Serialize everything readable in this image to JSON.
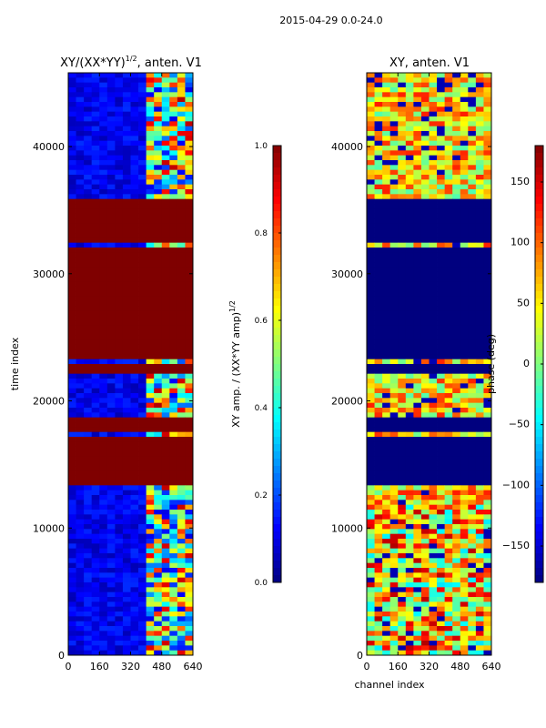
{
  "suptitle": "2015-04-29 0.0-24.0",
  "xlabel": "channel index",
  "colors": {
    "jet": [
      "#00007f",
      "#0000ff",
      "#007fff",
      "#00ffff",
      "#7fff7f",
      "#ffff00",
      "#ff7f00",
      "#ff0000",
      "#7f0000"
    ]
  },
  "chart_data": [
    {
      "type": "heatmap",
      "title_prefix": "XY/(XX*YY)",
      "title_exp": "1/2",
      "title_suffix": ", anten. V1",
      "ylabel": "time index",
      "xlabel": "",
      "x_ticks": [
        "0",
        "160",
        "320",
        "480",
        "640"
      ],
      "x_tick_values": [
        0,
        160,
        320,
        480,
        640
      ],
      "xlim": [
        0,
        640
      ],
      "y_ticks": [
        "0",
        "10000",
        "20000",
        "30000",
        "40000"
      ],
      "y_tick_values": [
        0,
        10000,
        20000,
        30000,
        40000
      ],
      "ylim": [
        0,
        45800
      ],
      "colorbar": {
        "label_prefix": "XY amp. / (XX*YY amp)",
        "label_exp": "1/2",
        "range": [
          0.0,
          1.0
        ],
        "ticks": [
          "0.0",
          "0.2",
          "0.4",
          "0.6",
          "0.8",
          "1.0"
        ],
        "tick_values": [
          0.0,
          0.2,
          0.4,
          0.6,
          0.8,
          1.0
        ]
      },
      "saturated_bands": [
        [
          13400,
          17000
        ],
        [
          17500,
          18600
        ],
        [
          22300,
          23000
        ],
        [
          23300,
          32000
        ],
        [
          32400,
          35900
        ]
      ],
      "active_channel_range": [
        400,
        640
      ],
      "notes": "low amplitude (~0.1) across most channels; high variability above channel ~420; amplitude ~1.0 in saturated bands"
    },
    {
      "type": "heatmap",
      "title_prefix": "XY, anten. V1",
      "title_exp": "",
      "title_suffix": "",
      "ylabel": "",
      "xlabel": "channel index",
      "x_ticks": [
        "0",
        "160",
        "320",
        "480",
        "640"
      ],
      "x_tick_values": [
        0,
        160,
        320,
        480,
        640
      ],
      "xlim": [
        0,
        640
      ],
      "y_ticks": [
        "0",
        "10000",
        "20000",
        "30000",
        "40000"
      ],
      "y_tick_values": [
        0,
        10000,
        20000,
        30000,
        40000
      ],
      "ylim": [
        0,
        45800
      ],
      "colorbar": {
        "label_prefix": "phase (deg)",
        "label_exp": "",
        "range": [
          -180,
          180
        ],
        "ticks": [
          "−150",
          "−100",
          "−50",
          "0",
          "50",
          "100",
          "150"
        ],
        "tick_values": [
          -150,
          -100,
          -50,
          0,
          50,
          100,
          150
        ]
      },
      "dark_bands": [
        [
          13400,
          17000
        ],
        [
          17500,
          18600
        ],
        [
          22300,
          23000
        ],
        [
          23300,
          32000
        ],
        [
          32400,
          35900
        ]
      ],
      "notes": "phase mostly near 0 to 50 deg with wide scatter; -180 deg in flagged bands"
    }
  ]
}
